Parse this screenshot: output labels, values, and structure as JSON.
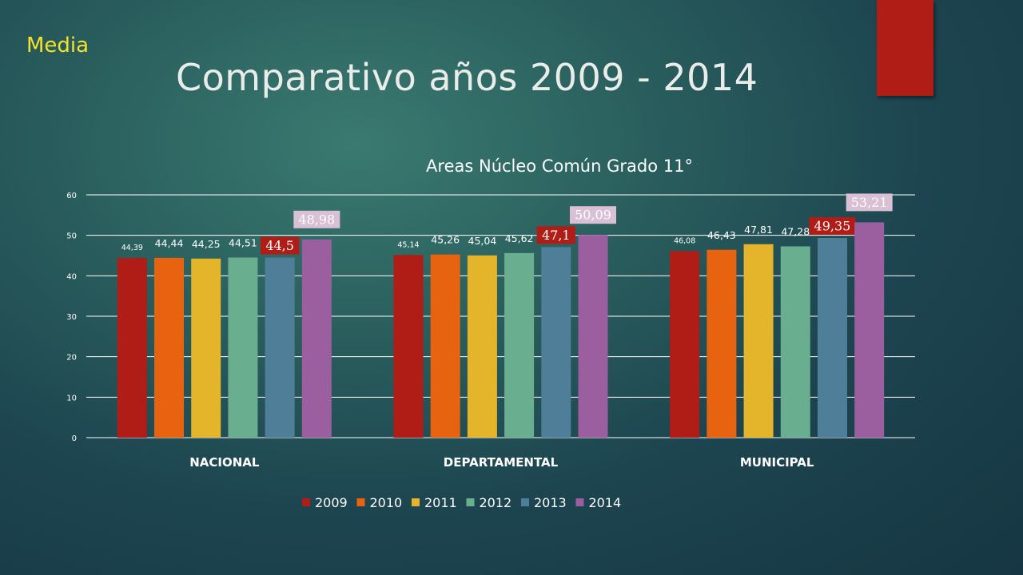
{
  "slide": {
    "section_label": "Media",
    "title": "Comparativo años 2009 - 2014"
  },
  "colors": {
    "2009": "#b01c16",
    "2010": "#e8630f",
    "2011": "#e4b52a",
    "2012": "#6aae90",
    "2013": "#4f7f98",
    "2014": "#9b5e9e",
    "highlight_red_label": "#b01c16",
    "highlight_pink_label": "#d9c0d4"
  },
  "chart_data": {
    "type": "bar",
    "title": "Areas Núcleo Común Grado 11°",
    "categories": [
      "NACIONAL",
      "DEPARTAMENTAL",
      "MUNICIPAL"
    ],
    "ylim": [
      0,
      60
    ],
    "yticks": [
      0,
      10,
      20,
      30,
      40,
      50,
      60
    ],
    "grid": true,
    "legend_position": "bottom",
    "series": [
      {
        "name": "2009",
        "values": [
          44.39,
          45.14,
          46.08
        ],
        "labels": [
          "44,39",
          "45,14",
          "46,08"
        ]
      },
      {
        "name": "2010",
        "values": [
          44.44,
          45.26,
          46.43
        ],
        "labels": [
          "44,44",
          "45,26",
          "46,43"
        ]
      },
      {
        "name": "2011",
        "values": [
          44.25,
          45.04,
          47.81
        ],
        "labels": [
          "44,25",
          "45,04",
          "47,81"
        ]
      },
      {
        "name": "2012",
        "values": [
          44.51,
          45.62,
          47.28
        ],
        "labels": [
          "44,51",
          "45,62",
          "47,28"
        ]
      },
      {
        "name": "2013",
        "values": [
          44.5,
          47.1,
          49.35
        ],
        "labels": [
          "44,5",
          "47,1",
          "49,35"
        ]
      },
      {
        "name": "2014",
        "values": [
          48.98,
          50.09,
          53.21
        ],
        "labels": [
          "48,98",
          "50,09",
          "53,21"
        ]
      }
    ]
  }
}
